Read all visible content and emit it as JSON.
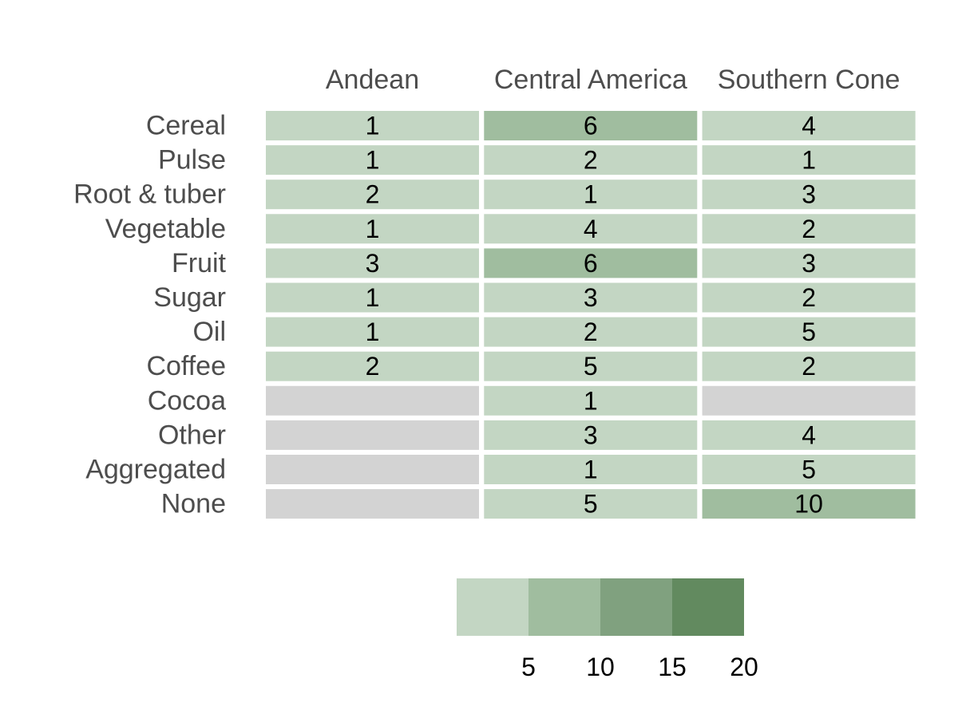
{
  "chart_data": {
    "type": "heatmap",
    "title": "",
    "xlabel": "",
    "ylabel": "",
    "columns": [
      "Andean",
      "Central America",
      "Southern Cone"
    ],
    "rows": [
      "Cereal",
      "Pulse",
      "Root & tuber",
      "Vegetable",
      "Fruit",
      "Sugar",
      "Oil",
      "Coffee",
      "Cocoa",
      "Other",
      "Aggregated",
      "None"
    ],
    "values": [
      [
        1,
        6,
        4
      ],
      [
        1,
        2,
        1
      ],
      [
        2,
        1,
        3
      ],
      [
        1,
        4,
        2
      ],
      [
        3,
        6,
        3
      ],
      [
        1,
        3,
        2
      ],
      [
        1,
        2,
        5
      ],
      [
        2,
        5,
        2
      ],
      [
        null,
        1,
        null
      ],
      [
        null,
        3,
        4
      ],
      [
        null,
        1,
        5
      ],
      [
        null,
        5,
        10
      ]
    ],
    "legend": {
      "breaks": [
        0,
        5,
        10,
        15,
        20
      ],
      "tick_labels": [
        "5",
        "10",
        "15",
        "20"
      ],
      "colors": [
        "#c3d6c3",
        "#a0bd9f",
        "#80a17f",
        "#628a5f"
      ],
      "placement": "bottom"
    },
    "missing_color": "#d3d3d3",
    "grid": false
  }
}
